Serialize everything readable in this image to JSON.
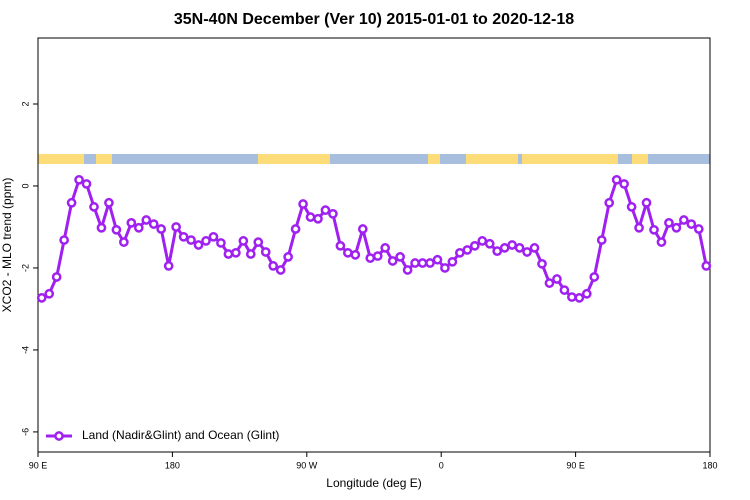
{
  "chart_data": {
    "type": "line",
    "title": "35N-40N December (Ver 10)   2015-01-01 to 2020-12-18",
    "x_label": "Longitude (deg E)",
    "y_label": "XCO2 - MLO trend (ppm)",
    "x": [
      92.5,
      97.5,
      102.5,
      107.5,
      112.5,
      117.5,
      122.5,
      127.5,
      132.5,
      137.5,
      142.5,
      147.5,
      152.5,
      157.5,
      162.5,
      167.5,
      172.5,
      177.5,
      182.5,
      187.5,
      192.5,
      197.5,
      202.5,
      207.5,
      212.5,
      217.5,
      222.5,
      227.5,
      232.5,
      237.5,
      242.5,
      247.5,
      252.5,
      257.5,
      262.5,
      267.5,
      272.5,
      277.5,
      282.5,
      287.5,
      292.5,
      297.5,
      302.5,
      307.5,
      312.5,
      317.5,
      322.5,
      327.5,
      332.5,
      337.5,
      342.5,
      347.5,
      352.5,
      357.5,
      362.5,
      367.5,
      372.5,
      377.5,
      382.5,
      387.5,
      392.5,
      397.5,
      402.5,
      407.5,
      412.5,
      417.5,
      422.5,
      427.5,
      432.5,
      437.5,
      442.5,
      447.5,
      452.5,
      457.5,
      462.5,
      467.5,
      472.5,
      477.5,
      482.5,
      487.5,
      492.5,
      497.5,
      502.5,
      507.5,
      512.5,
      517.5,
      522.5,
      527.5,
      532.5,
      537.5
    ],
    "series": [
      {
        "name": "Land (Nadir&Glint) and Ocean (Glint)",
        "color": "#a020f0",
        "values": [
          -2.73,
          -2.63,
          -2.22,
          -1.32,
          -0.41,
          0.15,
          0.05,
          -0.51,
          -1.02,
          -0.41,
          -1.07,
          -1.37,
          -0.9,
          -1.02,
          -0.83,
          -0.93,
          -1.05,
          -1.95,
          -1.0,
          -1.24,
          -1.32,
          -1.44,
          -1.34,
          -1.24,
          -1.39,
          -1.66,
          -1.63,
          -1.34,
          -1.66,
          -1.37,
          -1.61,
          -1.95,
          -2.05,
          -1.73,
          -1.05,
          -0.44,
          -0.76,
          -0.8,
          -0.59,
          -0.68,
          -1.46,
          -1.63,
          -1.68,
          -1.05,
          -1.76,
          -1.71,
          -1.51,
          -1.83,
          -1.73,
          -2.05,
          -1.88,
          -1.88,
          -1.88,
          -1.8,
          -2.0,
          -1.85,
          -1.63,
          -1.56,
          -1.46,
          -1.34,
          -1.41,
          -1.59,
          -1.51,
          -1.44,
          -1.51,
          -1.61,
          -1.51,
          -1.9,
          -2.37,
          -2.27,
          -2.54,
          -2.71,
          -2.73,
          -2.63,
          -2.22,
          -1.32,
          -0.41,
          0.15,
          0.05,
          -0.51,
          -1.02,
          -0.41,
          -1.07,
          -1.37,
          -0.9,
          -1.02,
          -0.83,
          -0.93,
          -1.05,
          -1.95
        ]
      }
    ],
    "xlim": [
      90,
      540
    ],
    "xticks": [
      {
        "value": 90,
        "label": "90 E"
      },
      {
        "value": 180,
        "label": "180"
      },
      {
        "value": 270,
        "label": "90 W"
      },
      {
        "value": 360,
        "label": "0"
      },
      {
        "value": 450,
        "label": "90 E"
      },
      {
        "value": 540,
        "label": "180"
      }
    ],
    "ylim": [
      -6.49,
      3.61
    ],
    "yticks": [
      -6,
      -4,
      -2,
      0,
      2
    ],
    "legend": "bottom-left"
  }
}
